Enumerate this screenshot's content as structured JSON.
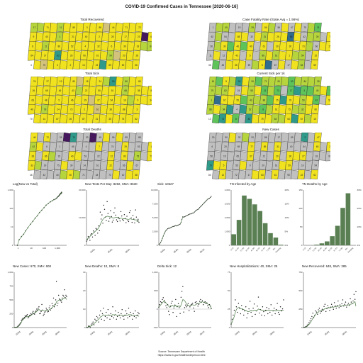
{
  "title": "COVID-19 Confirmed Cases in Tennessee [2020-06-16]",
  "maps": [
    {
      "id": "total-recovered",
      "title": "Total Recovered",
      "palette": "yellow"
    },
    {
      "id": "case-fatality",
      "title": "Case Fatality Rate (State Avg = 1.56%)",
      "palette": "mixed"
    },
    {
      "id": "total-sick",
      "title": "Total Sick",
      "palette": "yellow"
    },
    {
      "id": "current-sick",
      "title": "Current Sick per 1k",
      "palette": "green"
    },
    {
      "id": "total-deaths",
      "title": "Total Deaths",
      "palette": "sparse"
    },
    {
      "id": "new-cases",
      "title": "New Cases",
      "palette": "sparse"
    }
  ],
  "map_colors": {
    "yellow": "#f0e21e",
    "lime": "#b6d43c",
    "green": "#5ec45a",
    "teal": "#2f9a8a",
    "blue": "#2f6c8e",
    "purple": "#45175d",
    "gray": "#c0c0c0",
    "tan": "#d3c27c"
  },
  "chart_data": [
    {
      "type": "scatter",
      "id": "log-new-vs-total",
      "title": "Log(New vs Total)",
      "xlim": [
        1,
        100000
      ],
      "ylim": [
        1,
        1000
      ],
      "xscale": "log",
      "yscale": "log",
      "xticks": [
        "1",
        "10",
        "100",
        "1,000"
      ],
      "yticks": [
        "1,000",
        "100",
        "10",
        "1"
      ],
      "x": [
        2,
        3,
        5,
        8,
        12,
        20,
        35,
        60,
        100,
        160,
        260,
        420,
        700,
        1100,
        1800,
        2800,
        4200,
        6000,
        8000,
        10000,
        12000,
        14000,
        16000,
        18000,
        20000,
        22000,
        24000,
        26000,
        28000,
        30000,
        32000,
        33000
      ],
      "y": [
        1,
        2,
        3,
        4,
        6,
        9,
        14,
        20,
        30,
        40,
        60,
        80,
        110,
        150,
        190,
        230,
        260,
        300,
        320,
        350,
        380,
        420,
        450,
        480,
        520,
        560,
        600,
        650,
        620,
        700,
        680,
        760
      ]
    },
    {
      "type": "scatter",
      "id": "new-tests",
      "title": "New Tests Per Day: 8292, SMA: 8530",
      "ylim": [
        0,
        20000
      ],
      "yticks": [
        "20,000",
        "10,000",
        "0"
      ],
      "xticks": [
        "04/01",
        "05/01",
        "06/01"
      ],
      "values": [
        1500,
        2000,
        3200,
        2600,
        1800,
        3800,
        4200,
        3000,
        5200,
        4800,
        3600,
        6100,
        5800,
        4400,
        7000,
        5300,
        12000,
        9500,
        11000,
        8000,
        14500,
        13000,
        10200,
        9000,
        15800,
        11500,
        8700,
        9800,
        12500,
        10400,
        8400,
        9100,
        11800,
        13500,
        10900,
        9200,
        8600,
        10100,
        9600,
        8800,
        12200,
        10600,
        9300,
        8900,
        11100,
        9700,
        8200,
        10500,
        9000,
        8600,
        11900,
        12600,
        9900,
        8300,
        10800,
        9500,
        8100,
        12800,
        10200,
        8700,
        9400,
        8292
      ],
      "sma": [
        1900,
        2200,
        2700,
        3000,
        3200,
        3500,
        3800,
        4100,
        4400,
        4700,
        5000,
        5300,
        5600,
        5900,
        6200,
        6800,
        7500,
        8200,
        8800,
        9300,
        9700,
        10000,
        10300,
        10400,
        10500,
        10500,
        10400,
        10300,
        10200,
        10100,
        10000,
        9900,
        9900,
        10000,
        10100,
        10100,
        10000,
        9900,
        9800,
        9700,
        9800,
        9800,
        9700,
        9600,
        9600,
        9600,
        9500,
        9500,
        9400,
        9400,
        9500,
        9600,
        9500,
        9400,
        9400,
        9300,
        9200,
        9200,
        9200,
        9100,
        9000,
        8530
      ]
    },
    {
      "type": "line",
      "id": "sick",
      "title": "Sick: 10627",
      "ylim": [
        0,
        12000
      ],
      "yticks": [
        "10,000",
        "7,500",
        "5,000",
        "2,500",
        "0"
      ],
      "xticks": [
        "04/01",
        "05/01",
        "06/01",
        "06/15"
      ],
      "values": [
        100,
        300,
        600,
        1000,
        1500,
        2000,
        2500,
        2900,
        3200,
        3400,
        3600,
        3700,
        3700,
        3800,
        3900,
        4000,
        4100,
        4100,
        4200,
        4300,
        4200,
        4300,
        4400,
        4500,
        4600,
        5000,
        5600,
        6200,
        6100,
        6200,
        6300,
        6400,
        6500,
        6600,
        6700,
        6800,
        6800,
        6900,
        7000,
        7000,
        7200,
        7400,
        7600,
        7700,
        7800,
        7900,
        8200,
        8400,
        8600,
        8800,
        9000,
        9200,
        9400,
        9600,
        9800,
        10000,
        10100,
        10200,
        10400,
        10627
      ]
    },
    {
      "type": "bar",
      "id": "infected-by-age",
      "title": "TN Infected by Age",
      "categories": [
        "0-10",
        "11-20",
        "21-30",
        "31-40",
        "41-50",
        "51-60",
        "61-70",
        "71-80",
        "80+",
        "Pending"
      ],
      "values": [
        1000,
        2300,
        4500,
        4200,
        3700,
        3100,
        2000,
        1100,
        700,
        50
      ],
      "ylim": [
        0,
        5000
      ],
      "yticks": [
        "4,000",
        "3,000",
        "2,000",
        "1,000",
        "0"
      ],
      "y2ticks": [
        "20%",
        "15%",
        "10%",
        "5%",
        "0%"
      ],
      "color": "#5a7f53"
    },
    {
      "type": "bar",
      "id": "deaths-by-age",
      "title": "TN Deaths by Age",
      "categories": [
        "0-10",
        "11-20",
        "21-30",
        "31-40",
        "41-50",
        "51-60",
        "61-70",
        "71-80",
        "80+",
        "Pending"
      ],
      "values": [
        0,
        0,
        2,
        6,
        12,
        28,
        60,
        115,
        160,
        0
      ],
      "ylim": [
        0,
        170
      ],
      "yticks": [
        "150",
        "100",
        "50",
        "0"
      ],
      "y2ticks": [
        "30%",
        "20%",
        "10%",
        "0%"
      ],
      "color": "#5a7f53"
    },
    {
      "type": "scatter",
      "id": "new-cases",
      "title": "New Cases: 670, SMA: 608",
      "ylim": [
        0,
        1200
      ],
      "yticks": [
        "1,000",
        "750",
        "500",
        "250",
        "0"
      ],
      "xticks": [
        "03/01",
        "04/01",
        "05/01",
        "06/01"
      ],
      "values": [
        1,
        2,
        3,
        5,
        10,
        25,
        40,
        60,
        80,
        110,
        150,
        180,
        200,
        190,
        220,
        250,
        240,
        260,
        280,
        210,
        230,
        260,
        270,
        300,
        280,
        320,
        350,
        300,
        290,
        340,
        360,
        400,
        380,
        420,
        450,
        300,
        310,
        350,
        500,
        380,
        260,
        290,
        330,
        360,
        420,
        390,
        340,
        350,
        430,
        470,
        380,
        410,
        520,
        480,
        640,
        450,
        500,
        600,
        1000,
        480,
        530,
        700,
        620,
        600,
        580,
        550,
        640,
        700,
        680,
        820,
        650,
        700,
        670
      ],
      "sma": [
        1,
        2,
        3,
        4,
        7,
        15,
        28,
        45,
        65,
        90,
        120,
        150,
        170,
        185,
        195,
        210,
        225,
        235,
        245,
        240,
        240,
        245,
        250,
        265,
        275,
        290,
        305,
        310,
        315,
        325,
        335,
        350,
        365,
        380,
        395,
        380,
        370,
        365,
        380,
        380,
        370,
        360,
        350,
        350,
        365,
        375,
        375,
        375,
        385,
        400,
        405,
        410,
        430,
        445,
        470,
        475,
        490,
        510,
        560,
        570,
        580,
        590,
        600,
        610,
        600,
        595,
        605,
        620,
        630,
        650,
        640,
        630,
        608
      ]
    },
    {
      "type": "scatter",
      "id": "new-deaths",
      "title": "New Deaths: 10, SMA: 8",
      "ylim": [
        0,
        40
      ],
      "yticks": [
        "30",
        "20",
        "10",
        "0"
      ],
      "xticks": [
        "04/01",
        "05/01",
        "06/01"
      ],
      "values": [
        0,
        0,
        1,
        1,
        0,
        2,
        3,
        4,
        2,
        6,
        5,
        8,
        7,
        4,
        9,
        12,
        6,
        10,
        14,
        5,
        8,
        11,
        7,
        13,
        9,
        6,
        10,
        8,
        15,
        7,
        9,
        12,
        6,
        8,
        11,
        9,
        7,
        10,
        13,
        8,
        6,
        9,
        12,
        10,
        7,
        14,
        8,
        11,
        9,
        6,
        10,
        8,
        12,
        7,
        9,
        11,
        10
      ],
      "sma": [
        0,
        0,
        0.5,
        0.7,
        0.8,
        1.2,
        1.7,
        2.4,
        2.9,
        3.5,
        4,
        5,
        5.5,
        6,
        6.8,
        7.8,
        8,
        8.5,
        9.3,
        9,
        8.6,
        9,
        8.8,
        9.2,
        9.1,
        8.6,
        8.8,
        8.7,
        9.5,
        9.2,
        9,
        9.6,
        9,
        8.7,
        8.8,
        8.7,
        8.6,
        8.9,
        9.1,
        8.7,
        8.4,
        8.6,
        9,
        9.1,
        8.8,
        9.4,
        9.2,
        9.3,
        9,
        8.6,
        8.8,
        8.6,
        8.9,
        8.5,
        8.4,
        8.6,
        8
      ]
    },
    {
      "type": "scatter",
      "id": "delta-sick",
      "title": "Delta Sick: 12",
      "ylim": [
        -500,
        1000
      ],
      "yticks": [
        "1,000",
        "500",
        "0",
        "-500"
      ],
      "xticks": [
        "04/01",
        "05/01",
        "06/01",
        "06/15"
      ],
      "values": [
        50,
        120,
        200,
        180,
        260,
        310,
        240,
        180,
        90,
        40,
        120,
        -60,
        -150,
        80,
        160,
        210,
        -90,
        30,
        110,
        260,
        -200,
        70,
        150,
        40,
        -120,
        320,
        480,
        610,
        -80,
        40,
        110,
        60,
        90,
        150,
        -40,
        60,
        110,
        130,
        160,
        30,
        -60,
        180,
        200,
        150,
        80,
        130,
        210,
        260,
        190,
        230,
        120,
        180,
        200,
        150,
        170,
        90,
        40,
        120,
        80,
        12
      ],
      "sma": [
        50,
        80,
        110,
        140,
        170,
        200,
        210,
        200,
        170,
        140,
        110,
        80,
        50,
        60,
        80,
        110,
        90,
        70,
        80,
        110,
        60,
        60,
        80,
        90,
        60,
        110,
        180,
        260,
        250,
        230,
        190,
        150,
        120,
        110,
        90,
        90,
        100,
        110,
        120,
        110,
        100,
        110,
        130,
        140,
        140,
        150,
        170,
        180,
        190,
        200,
        190,
        180,
        180,
        170,
        160,
        140,
        120,
        110,
        90,
        12
      ]
    },
    {
      "type": "scatter",
      "id": "new-hospitalizations",
      "title": "New Hospitalizations: 40, SMA: 25",
      "ylim": [
        0,
        80
      ],
      "yticks": [
        "75",
        "50",
        "25",
        "0"
      ],
      "xticks": [
        "04/01",
        "05/01",
        "06/01"
      ],
      "values": [
        5,
        12,
        18,
        25,
        40,
        30,
        22,
        35,
        28,
        20,
        32,
        26,
        18,
        24,
        30,
        14,
        20,
        27,
        38,
        22,
        16,
        28,
        34,
        19,
        24,
        31,
        44,
        21,
        26,
        18,
        30,
        23,
        17,
        25,
        29,
        20,
        27,
        22,
        33,
        18,
        24,
        28,
        20,
        26,
        35,
        22,
        19,
        30,
        24,
        27,
        40
      ],
      "sma": [
        5,
        8,
        12,
        16,
        22,
        26,
        28,
        29,
        29,
        27,
        27,
        27,
        26,
        25,
        25,
        24,
        23,
        23,
        24,
        25,
        24,
        24,
        25,
        25,
        24,
        25,
        27,
        26,
        26,
        25,
        25,
        25,
        24,
        24,
        25,
        25,
        25,
        24,
        25,
        25,
        24,
        25,
        24,
        24,
        25,
        25,
        24,
        25,
        25,
        25,
        25
      ]
    },
    {
      "type": "scatter",
      "id": "new-recovered",
      "title": "New Recovered: 648, SMA: 385",
      "ylim": [
        0,
        1000
      ],
      "yticks": [
        "750",
        "500",
        "250",
        "0"
      ],
      "xticks": [
        "04/01",
        "05/01",
        "06/01"
      ],
      "values": [
        0,
        5,
        10,
        20,
        40,
        60,
        90,
        120,
        160,
        200,
        260,
        180,
        220,
        300,
        280,
        240,
        320,
        350,
        260,
        290,
        330,
        310,
        380,
        420,
        290,
        340,
        400,
        360,
        310,
        370,
        420,
        380,
        330,
        450,
        390,
        350,
        400,
        480,
        360,
        410,
        380,
        430,
        500,
        390,
        420,
        460,
        370,
        410,
        440,
        400,
        520,
        460,
        430,
        480,
        600,
        510,
        648
      ],
      "sma": [
        0,
        3,
        6,
        12,
        22,
        36,
        55,
        78,
        105,
        135,
        170,
        190,
        210,
        240,
        255,
        265,
        280,
        300,
        300,
        305,
        315,
        320,
        330,
        345,
        345,
        350,
        360,
        360,
        355,
        360,
        370,
        370,
        365,
        375,
        380,
        375,
        380,
        390,
        385,
        390,
        385,
        390,
        400,
        395,
        400,
        405,
        400,
        405,
        410,
        410,
        420,
        425,
        430,
        440,
        455,
        470,
        385
      ]
    }
  ],
  "source": {
    "line1": "Source: Tennessee Department of Health",
    "line2": "https://www.tn.gov/health/cedep/ncov.html"
  }
}
